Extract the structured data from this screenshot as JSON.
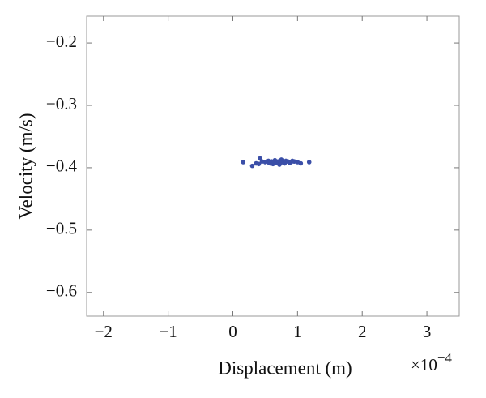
{
  "chart_data": {
    "type": "scatter",
    "x_label": "Displacement (m)",
    "y_label": "Velocity (m/s)",
    "x_multiplier": {
      "base": "×10",
      "exponent": "−4"
    },
    "color": "#3b4fa8",
    "x": [
      0.16,
      0.3,
      0.36,
      0.42,
      0.45,
      0.5,
      0.55,
      0.58,
      0.6,
      0.62,
      0.65,
      0.68,
      0.7,
      0.72,
      0.75,
      0.78,
      0.8,
      0.82,
      0.85,
      0.88,
      0.9,
      0.95,
      1.0,
      1.05,
      1.18,
      0.64,
      0.74,
      0.4,
      0.56,
      0.92
    ],
    "values": [
      -0.391,
      -0.397,
      -0.393,
      -0.385,
      -0.39,
      -0.391,
      -0.389,
      -0.393,
      -0.39,
      -0.394,
      -0.388,
      -0.392,
      -0.39,
      -0.395,
      -0.387,
      -0.391,
      -0.393,
      -0.389,
      -0.39,
      -0.392,
      -0.391,
      -0.39,
      -0.391,
      -0.393,
      -0.391,
      -0.39,
      -0.392,
      -0.394,
      -0.392,
      -0.389
    ],
    "xlim": [
      -2.26,
      3.5
    ],
    "ylim": [
      -0.638,
      -0.157
    ],
    "xticks": [
      {
        "value": -2,
        "label": "−2"
      },
      {
        "value": -1,
        "label": "−1"
      },
      0,
      1,
      2,
      3
    ],
    "yticks": [
      {
        "value": -0.2,
        "label": "−0.2"
      },
      {
        "value": -0.3,
        "label": "−0.3"
      },
      {
        "value": -0.4,
        "label": "−0.4"
      },
      {
        "value": -0.5,
        "label": "−0.5"
      },
      {
        "value": -0.6,
        "label": "−0.6"
      }
    ],
    "grid": false
  }
}
